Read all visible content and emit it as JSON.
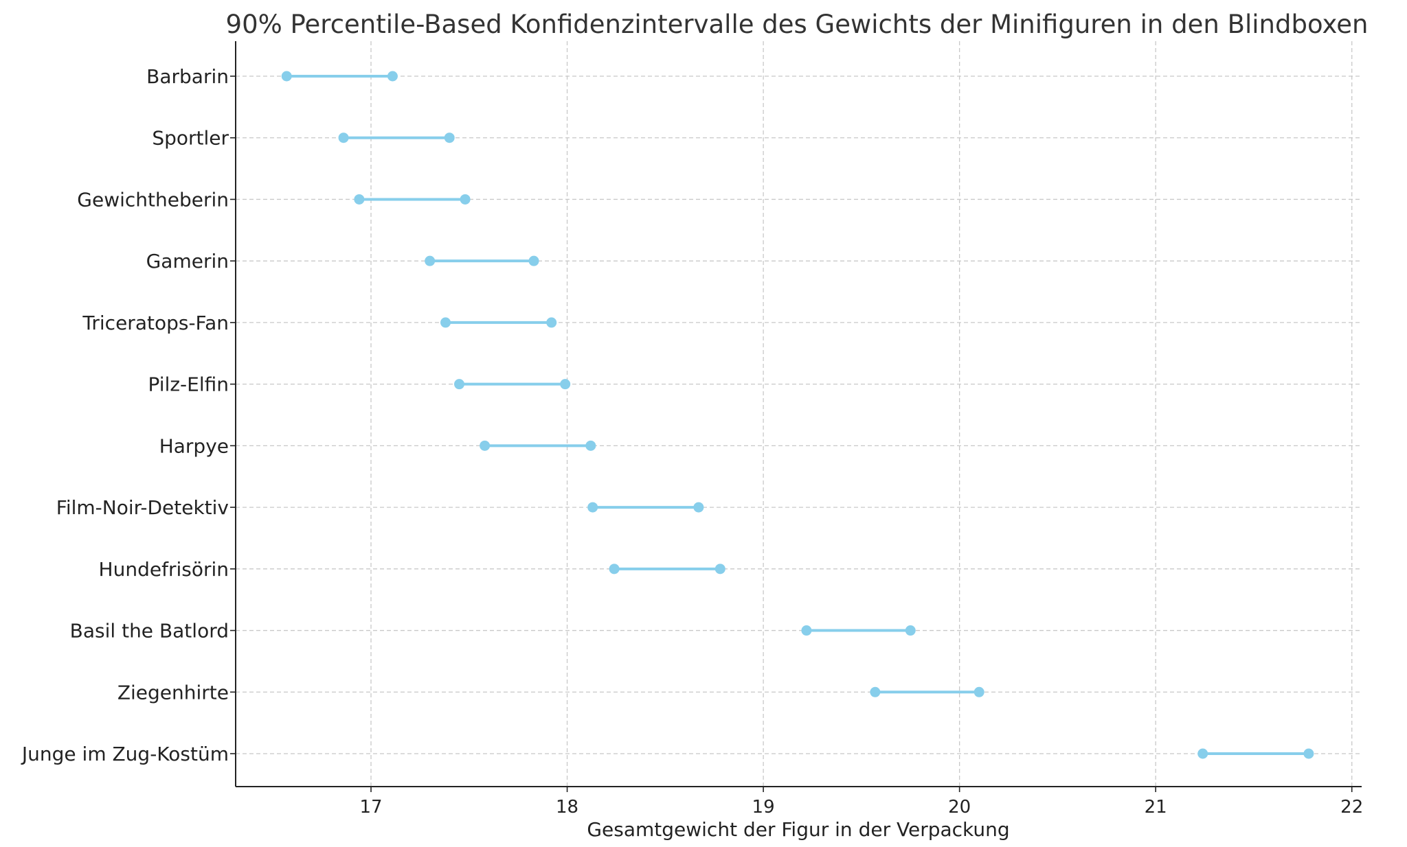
{
  "chart_data": {
    "type": "dumbbell",
    "title": "90% Percentile-Based Konfidenzintervalle des Gewichts der Minifiguren in den Blindboxen",
    "xlabel": "Gesamtgewicht der Figur in der Verpackung",
    "ylabel": "",
    "xlim": [
      16.31,
      22.05
    ],
    "xticks": [
      17,
      18,
      19,
      20,
      21,
      22
    ],
    "grid": true,
    "color": "#87CEEB",
    "categories": [
      "Barbarin",
      "Sportler",
      "Gewichtheberin",
      "Gamerin",
      "Triceratops-Fan",
      "Pilz-Elfin",
      "Harpye",
      "Film-Noir-Detektiv",
      "Hundefrisörin",
      "Basil the Batlord",
      "Ziegenhirte",
      "Junge im Zug-Kostüm"
    ],
    "lower": [
      16.57,
      16.86,
      16.94,
      17.3,
      17.38,
      17.45,
      17.58,
      18.13,
      18.24,
      19.22,
      19.57,
      21.24
    ],
    "upper": [
      17.11,
      17.4,
      17.48,
      17.83,
      17.92,
      17.99,
      18.12,
      18.67,
      18.78,
      19.75,
      20.1,
      21.78
    ]
  }
}
